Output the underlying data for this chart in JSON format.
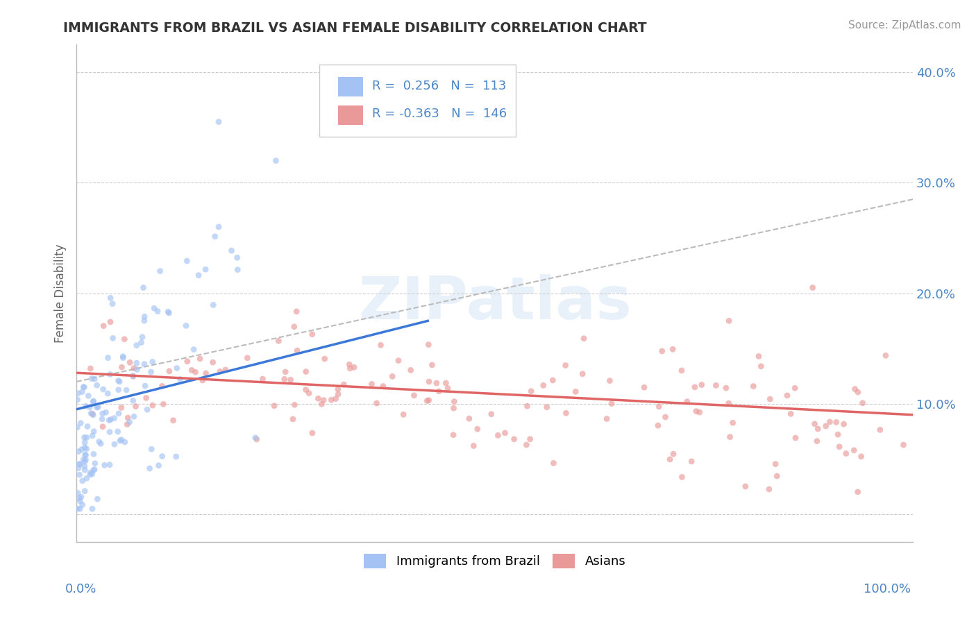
{
  "title": "IMMIGRANTS FROM BRAZIL VS ASIAN FEMALE DISABILITY CORRELATION CHART",
  "source": "Source: ZipAtlas.com",
  "ylabel": "Female Disability",
  "xlim": [
    0.0,
    1.0
  ],
  "ylim": [
    -0.025,
    0.425
  ],
  "yticks": [
    0.0,
    0.1,
    0.2,
    0.3,
    0.4
  ],
  "ytick_labels": [
    "",
    "10.0%",
    "20.0%",
    "30.0%",
    "40.0%"
  ],
  "watermark_text": "ZIPatlas",
  "blue_color": "#a4c2f4",
  "pink_color": "#ea9999",
  "blue_line_color": "#3c78d8",
  "pink_line_color": "#e06666",
  "gray_dash_color": "#bbbbbb",
  "scatter_alpha": 0.65,
  "scatter_size": 40,
  "blue_R": 0.256,
  "pink_R": -0.363,
  "blue_N": 113,
  "pink_N": 146,
  "legend_box_color": "#ffffff",
  "legend_border_color": "#cccccc",
  "tick_color": "#4a86c8",
  "title_color": "#333333",
  "ylabel_color": "#666666",
  "source_color": "#999999",
  "blue_line_x0": 0.0,
  "blue_line_x1": 0.42,
  "blue_line_y0": 0.095,
  "blue_line_y1": 0.175,
  "pink_line_x0": 0.0,
  "pink_line_x1": 1.0,
  "pink_line_y0": 0.128,
  "pink_line_y1": 0.09,
  "gray_line_x0": 0.0,
  "gray_line_x1": 1.0,
  "gray_line_y0": 0.12,
  "gray_line_y1": 0.285
}
